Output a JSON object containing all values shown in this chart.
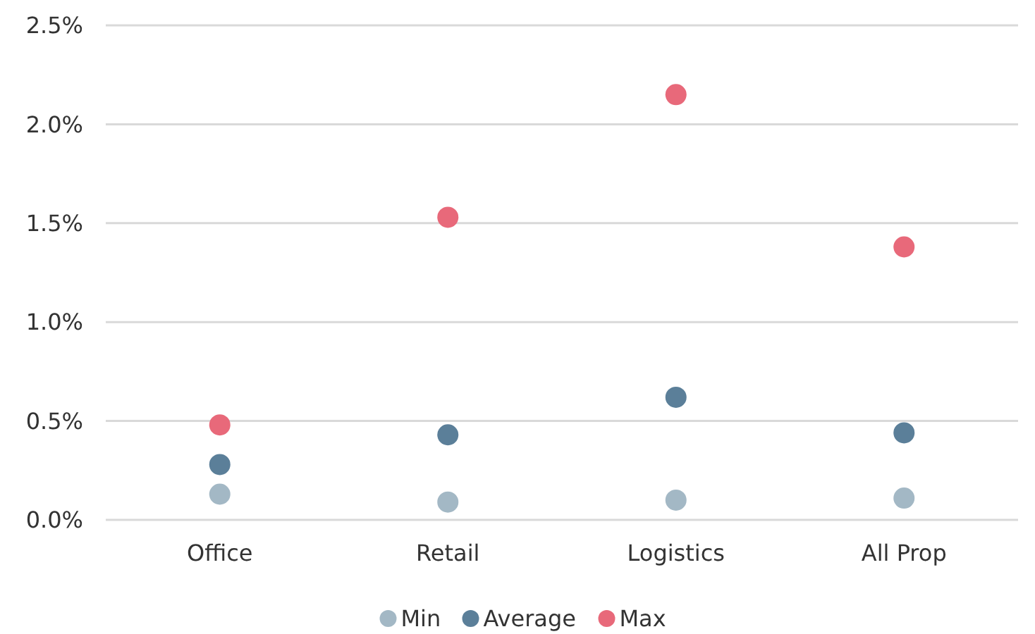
{
  "chart_data": {
    "type": "scatter",
    "categories": [
      "Office",
      "Retail",
      "Logistics",
      "All Prop"
    ],
    "series": [
      {
        "name": "Min",
        "color": "#a3b8c5",
        "values": [
          0.13,
          0.09,
          0.1,
          0.11
        ]
      },
      {
        "name": "Average",
        "color": "#5b7f99",
        "values": [
          0.28,
          0.43,
          0.62,
          0.44
        ]
      },
      {
        "name": "Max",
        "color": "#e8697a",
        "values": [
          0.48,
          1.53,
          2.15,
          1.38
        ]
      }
    ],
    "ylim": [
      0,
      2.5
    ],
    "yticks": [
      {
        "value": 0,
        "label": "0.0%"
      },
      {
        "value": 0.5,
        "label": "0.5%"
      },
      {
        "value": 1,
        "label": "1.0%"
      },
      {
        "value": 1.5,
        "label": "1.5%"
      },
      {
        "value": 2,
        "label": "2.0%"
      },
      {
        "value": 2.5,
        "label": "2.5%"
      }
    ],
    "grid": "y",
    "legend": "bottom",
    "marker": "circle"
  }
}
